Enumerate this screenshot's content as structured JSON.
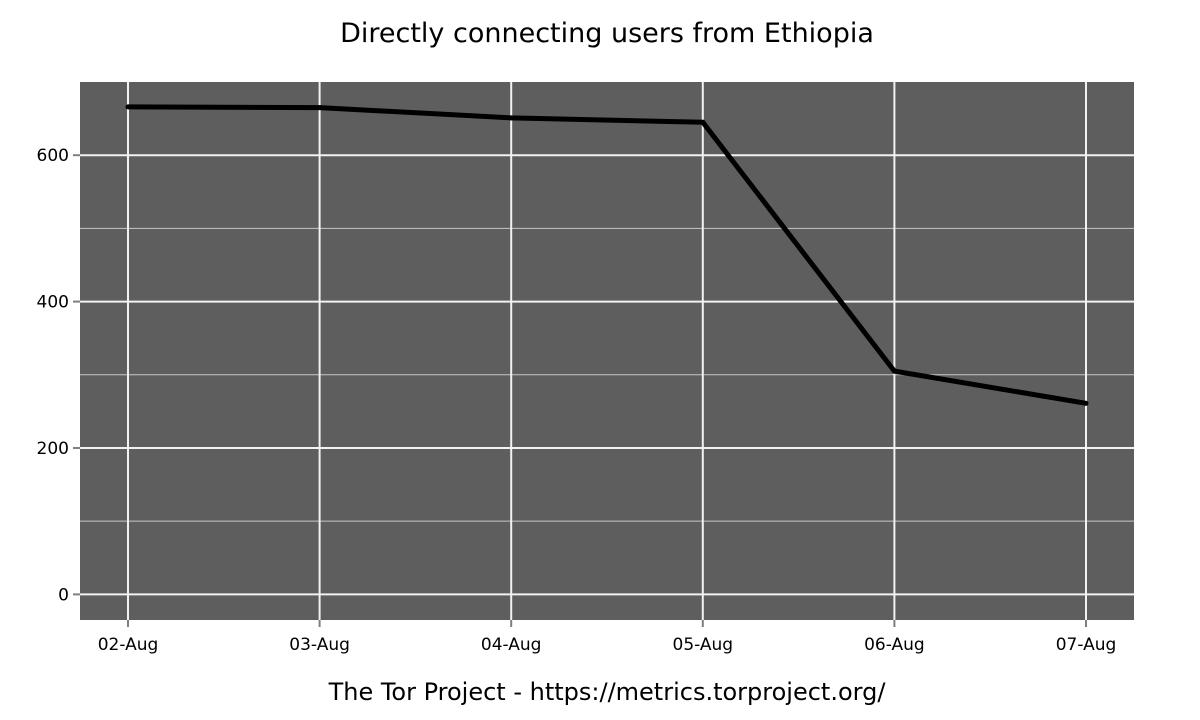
{
  "chart_data": {
    "type": "line",
    "title": "Directly connecting users from Ethiopia",
    "xlabel": "",
    "ylabel": "",
    "caption": "The Tor Project - https://metrics.torproject.org/",
    "categories": [
      "02-Aug",
      "03-Aug",
      "04-Aug",
      "05-Aug",
      "06-Aug",
      "07-Aug"
    ],
    "series": [
      {
        "values": [
          666,
          665,
          651,
          645,
          305,
          261
        ]
      }
    ],
    "yticks": [
      0,
      200,
      400,
      600
    ],
    "ylim": [
      -35,
      700
    ],
    "grid": true,
    "colors": {
      "panel_background": "#5e5e5e",
      "major_grid": "#f2f2f2",
      "minor_grid": "#c6c6c6",
      "line": "#000000"
    }
  }
}
